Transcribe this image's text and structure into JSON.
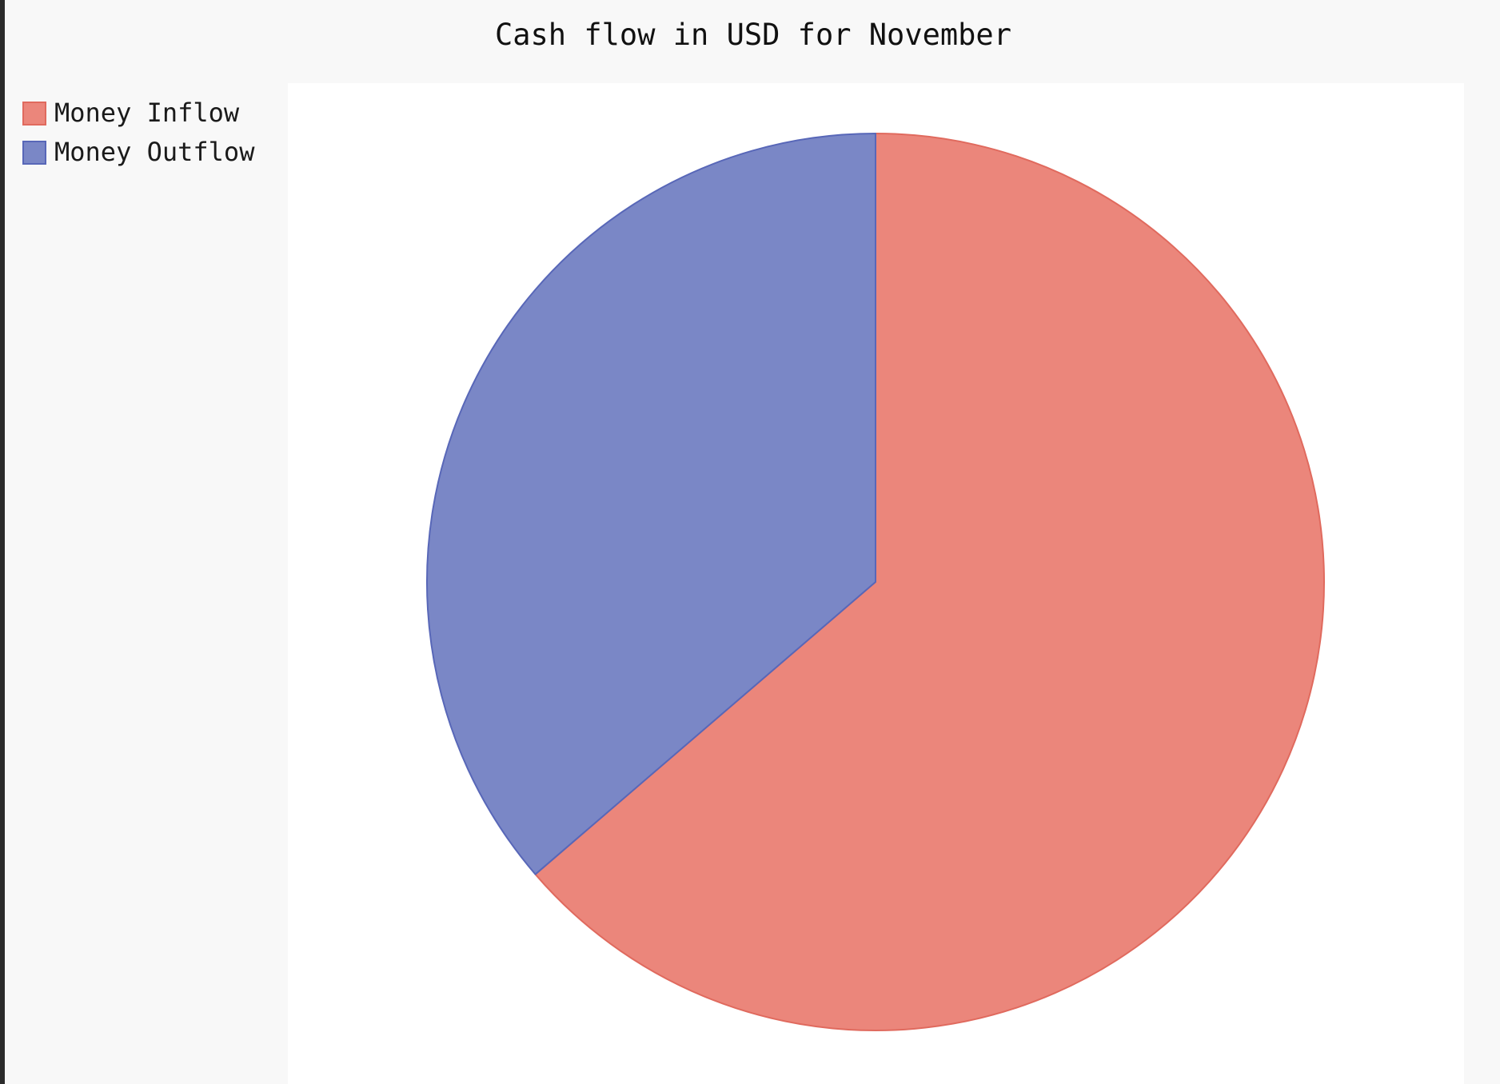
{
  "chart_data": {
    "type": "pie",
    "title": "Cash flow in USD for November",
    "categories": [
      "Money Inflow",
      "Money Outflow"
    ],
    "values": [
      63.7,
      36.3
    ],
    "start_angle_deg": 0,
    "direction": "clockwise",
    "colors": {
      "slice_fills": [
        "#eb867b",
        "#7a87c6"
      ],
      "slice_strokes": [
        "#e06a5e",
        "#5867b8"
      ],
      "plot_background": "#ffffff",
      "page_background": "#f8f8f8"
    },
    "legend_position": "top-left"
  }
}
